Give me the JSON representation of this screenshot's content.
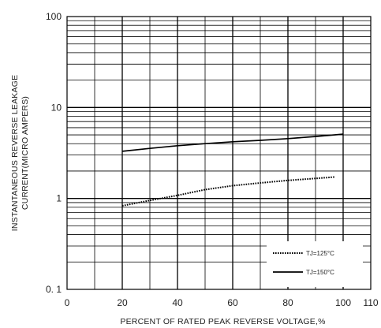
{
  "chart_data": {
    "type": "line",
    "xlabel": "PERCENT OF RATED PEAK REVERSE VOLTAGE,%",
    "ylabel": [
      "INSTANTANEOUS REVERSE LEAKAGE",
      "CURRENT(MICRO AMPERS)"
    ],
    "xlim": [
      0,
      110
    ],
    "ylim": [
      0.1,
      100
    ],
    "yscale": "log",
    "grid": true,
    "legend_position": "bottom-right",
    "x_ticks": [
      0,
      20,
      40,
      60,
      80,
      100,
      110
    ],
    "x_tick_labels": [
      "0",
      "20",
      "40",
      "60",
      "80",
      "100",
      "110"
    ],
    "y_ticks": [
      0.1,
      1,
      10,
      100
    ],
    "y_tick_labels": [
      "0. 1",
      "1",
      "10",
      "100"
    ],
    "series": [
      {
        "name": "TJ=125°C",
        "style": "dotted",
        "color": "#000000",
        "x": [
          20,
          30,
          40,
          50,
          60,
          70,
          80,
          90,
          97
        ],
        "y": [
          0.83,
          0.95,
          1.08,
          1.25,
          1.38,
          1.48,
          1.58,
          1.66,
          1.72
        ]
      },
      {
        "name": "TJ=150°C",
        "style": "solid",
        "color": "#000000",
        "x": [
          20,
          30,
          40,
          50,
          60,
          70,
          80,
          90,
          100
        ],
        "y": [
          3.3,
          3.55,
          3.8,
          4.0,
          4.2,
          4.35,
          4.55,
          4.8,
          5.1
        ]
      }
    ]
  }
}
